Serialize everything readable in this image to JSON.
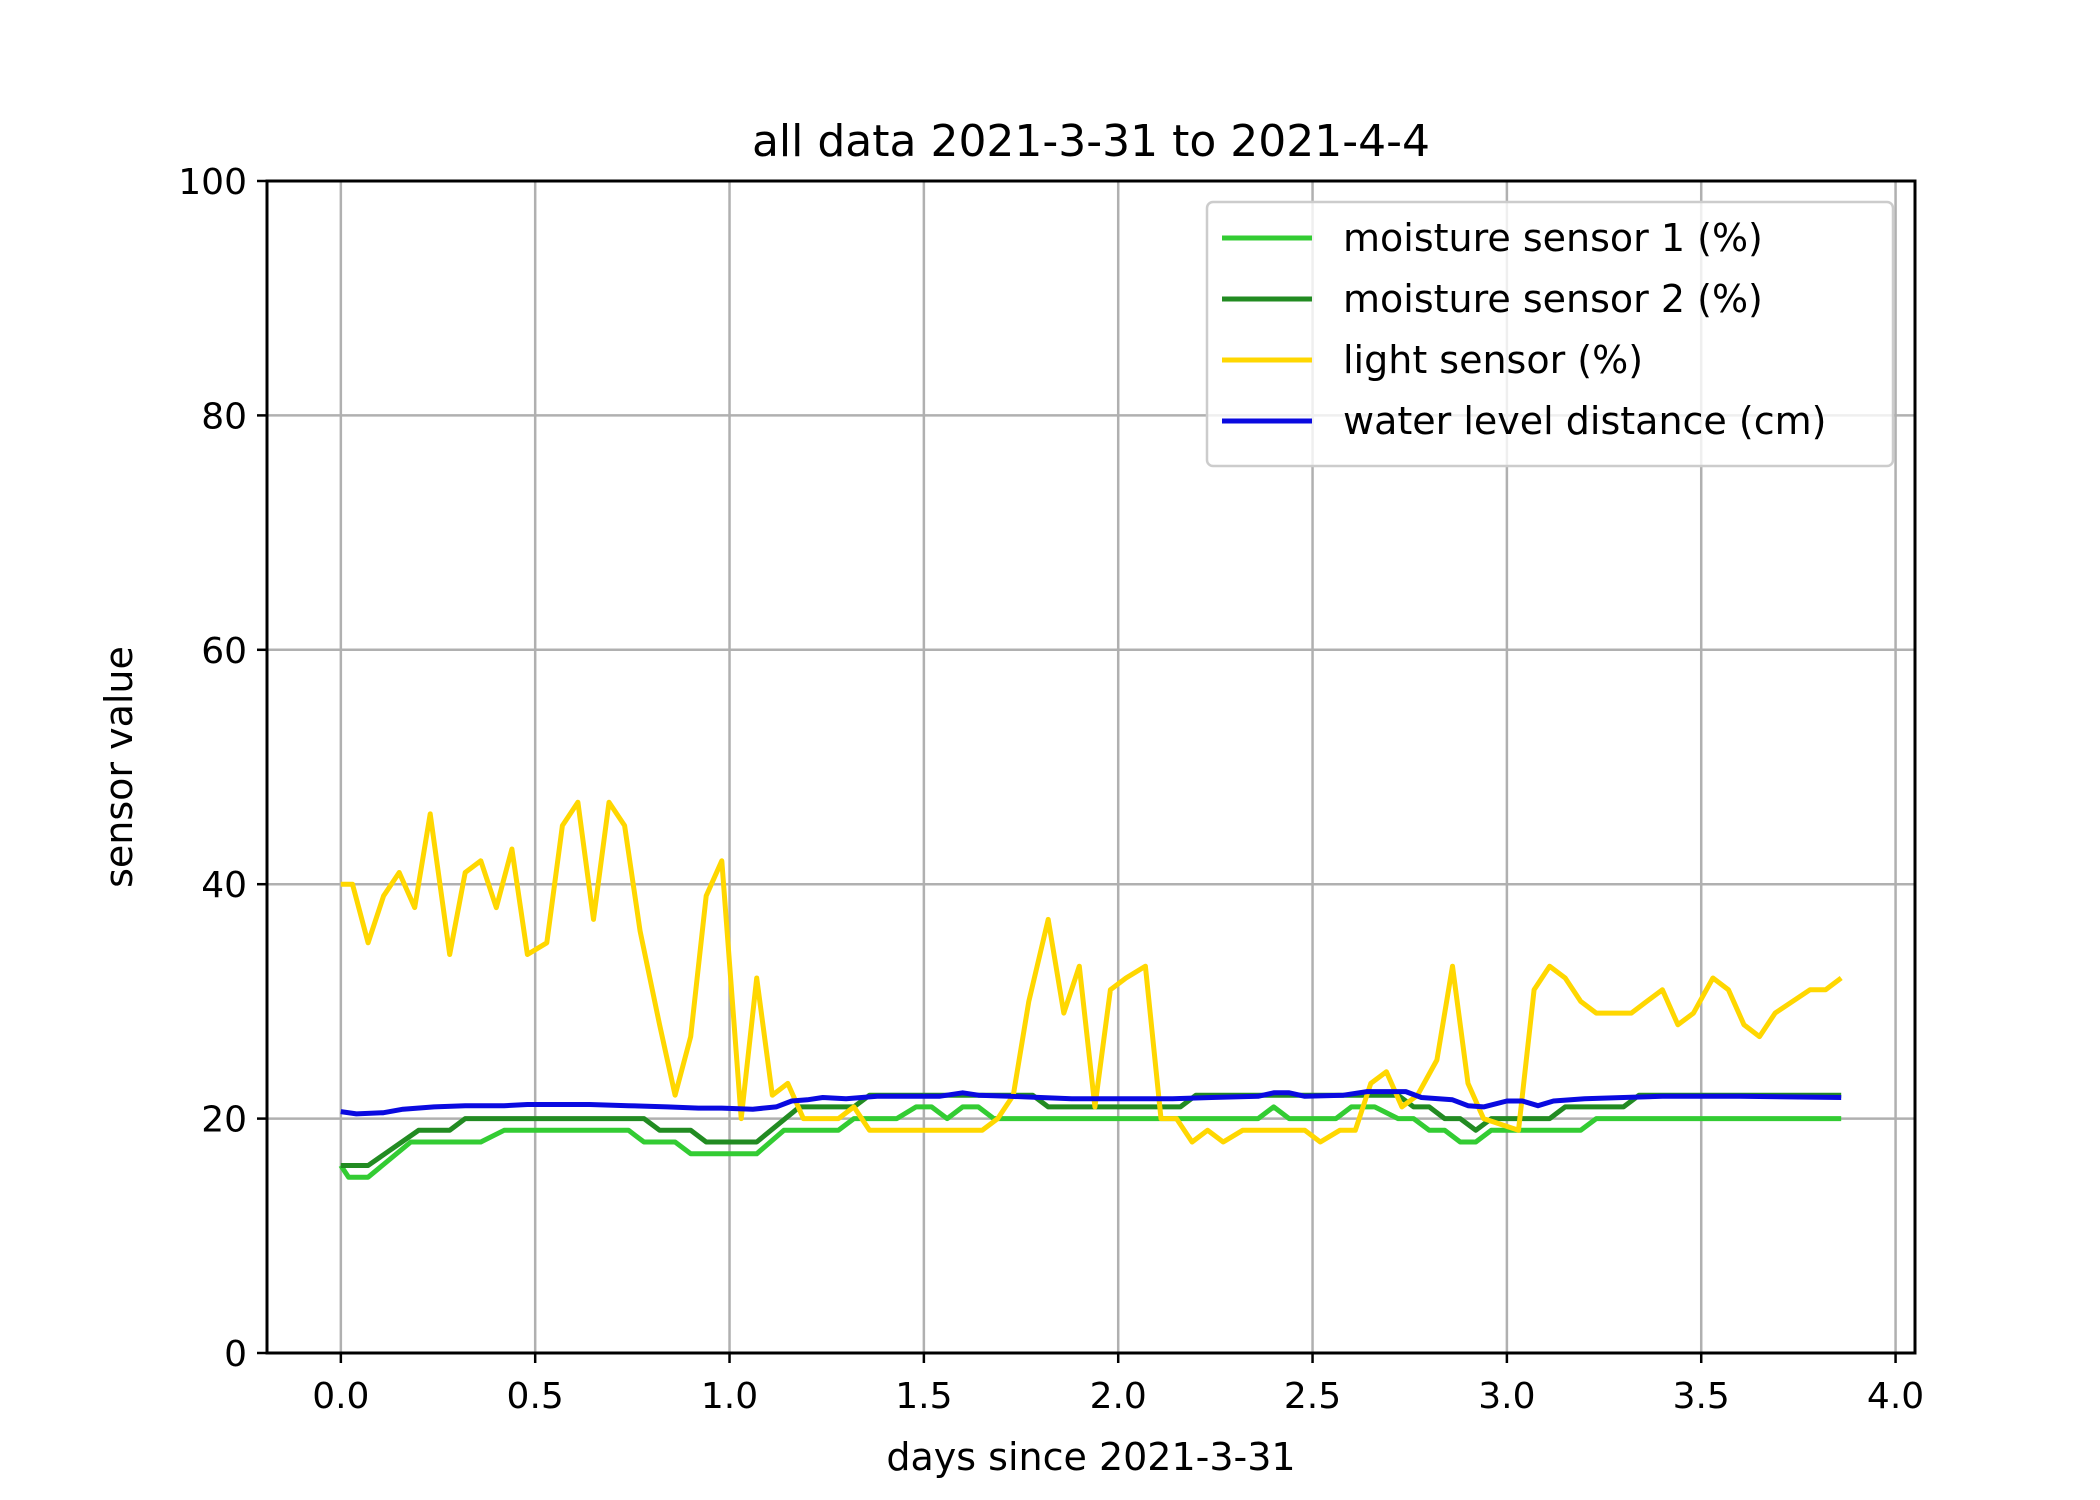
{
  "chart_data": {
    "type": "line",
    "title": "all data 2021-3-31 to 2021-4-4",
    "xlabel": "days since 2021-3-31",
    "ylabel": "sensor value",
    "xlim": [
      -0.19,
      4.05
    ],
    "ylim": [
      0,
      100
    ],
    "xticks": [
      0.0,
      0.5,
      1.0,
      1.5,
      2.0,
      2.5,
      3.0,
      3.5,
      4.0
    ],
    "xtick_labels": [
      "0.0",
      "0.5",
      "1.0",
      "1.5",
      "2.0",
      "2.5",
      "3.0",
      "3.5",
      "4.0"
    ],
    "yticks": [
      0,
      20,
      40,
      60,
      80,
      100
    ],
    "ytick_labels": [
      "0",
      "20",
      "40",
      "60",
      "80",
      "100"
    ],
    "grid": true,
    "legend_position": "top-right",
    "series": [
      {
        "name": "moisture sensor 1 (%)",
        "color": "#33cc33",
        "points": [
          [
            0.0,
            16
          ],
          [
            0.02,
            15
          ],
          [
            0.07,
            15
          ],
          [
            0.18,
            18
          ],
          [
            0.36,
            18
          ],
          [
            0.42,
            19
          ],
          [
            0.74,
            19
          ],
          [
            0.78,
            18
          ],
          [
            0.86,
            18
          ],
          [
            0.9,
            17
          ],
          [
            1.07,
            17
          ],
          [
            1.14,
            19
          ],
          [
            1.28,
            19
          ],
          [
            1.32,
            20
          ],
          [
            1.43,
            20
          ],
          [
            1.48,
            21
          ],
          [
            1.52,
            21
          ],
          [
            1.56,
            20
          ],
          [
            1.6,
            21
          ],
          [
            1.64,
            21
          ],
          [
            1.68,
            20
          ],
          [
            2.18,
            20
          ],
          [
            2.36,
            20
          ],
          [
            2.4,
            21
          ],
          [
            2.44,
            20
          ],
          [
            2.56,
            20
          ],
          [
            2.6,
            21
          ],
          [
            2.66,
            21
          ],
          [
            2.72,
            20
          ],
          [
            2.76,
            20
          ],
          [
            2.8,
            19
          ],
          [
            2.84,
            19
          ],
          [
            2.88,
            18
          ],
          [
            2.92,
            18
          ],
          [
            2.96,
            19
          ],
          [
            3.19,
            19
          ],
          [
            3.23,
            20
          ],
          [
            3.86,
            20
          ]
        ]
      },
      {
        "name": "moisture sensor 2 (%)",
        "color": "#228b22",
        "points": [
          [
            0.0,
            16
          ],
          [
            0.07,
            16
          ],
          [
            0.2,
            19
          ],
          [
            0.28,
            19
          ],
          [
            0.32,
            20
          ],
          [
            0.78,
            20
          ],
          [
            0.82,
            19
          ],
          [
            0.9,
            19
          ],
          [
            0.94,
            18
          ],
          [
            1.07,
            18
          ],
          [
            1.18,
            21
          ],
          [
            1.32,
            21
          ],
          [
            1.36,
            22
          ],
          [
            1.72,
            22
          ],
          [
            1.78,
            22
          ],
          [
            1.82,
            21
          ],
          [
            2.16,
            21
          ],
          [
            2.2,
            22
          ],
          [
            2.68,
            22
          ],
          [
            2.72,
            22
          ],
          [
            2.76,
            21
          ],
          [
            2.8,
            21
          ],
          [
            2.84,
            20
          ],
          [
            2.88,
            20
          ],
          [
            2.92,
            19
          ],
          [
            2.96,
            20
          ],
          [
            3.11,
            20
          ],
          [
            3.15,
            21
          ],
          [
            3.3,
            21
          ],
          [
            3.34,
            22
          ],
          [
            3.86,
            22
          ]
        ]
      },
      {
        "name": "light sensor (%)",
        "color": "#ffd700",
        "points": [
          [
            0.0,
            40
          ],
          [
            0.03,
            40
          ],
          [
            0.07,
            35
          ],
          [
            0.11,
            39
          ],
          [
            0.15,
            41
          ],
          [
            0.19,
            38
          ],
          [
            0.23,
            46
          ],
          [
            0.28,
            34
          ],
          [
            0.32,
            41
          ],
          [
            0.36,
            42
          ],
          [
            0.4,
            38
          ],
          [
            0.44,
            43
          ],
          [
            0.48,
            34
          ],
          [
            0.53,
            35
          ],
          [
            0.57,
            45
          ],
          [
            0.61,
            47
          ],
          [
            0.65,
            37
          ],
          [
            0.69,
            47
          ],
          [
            0.73,
            45
          ],
          [
            0.77,
            36
          ],
          [
            0.82,
            28
          ],
          [
            0.86,
            22
          ],
          [
            0.9,
            27
          ],
          [
            0.94,
            39
          ],
          [
            0.98,
            42
          ],
          [
            1.03,
            20
          ],
          [
            1.07,
            32
          ],
          [
            1.11,
            22
          ],
          [
            1.15,
            23
          ],
          [
            1.19,
            20
          ],
          [
            1.28,
            20
          ],
          [
            1.32,
            21
          ],
          [
            1.36,
            19
          ],
          [
            1.65,
            19
          ],
          [
            1.69,
            20
          ],
          [
            1.73,
            22
          ],
          [
            1.77,
            30
          ],
          [
            1.82,
            37
          ],
          [
            1.86,
            29
          ],
          [
            1.9,
            33
          ],
          [
            1.94,
            21
          ],
          [
            1.98,
            31
          ],
          [
            2.02,
            32
          ],
          [
            2.07,
            33
          ],
          [
            2.11,
            20
          ],
          [
            2.15,
            20
          ],
          [
            2.19,
            18
          ],
          [
            2.23,
            19
          ],
          [
            2.27,
            18
          ],
          [
            2.32,
            19
          ],
          [
            2.48,
            19
          ],
          [
            2.52,
            18
          ],
          [
            2.57,
            19
          ],
          [
            2.61,
            19
          ],
          [
            2.65,
            23
          ],
          [
            2.69,
            24
          ],
          [
            2.73,
            21
          ],
          [
            2.77,
            22
          ],
          [
            2.82,
            25
          ],
          [
            2.86,
            33
          ],
          [
            2.9,
            23
          ],
          [
            2.94,
            20
          ],
          [
            3.03,
            19
          ],
          [
            3.07,
            31
          ],
          [
            3.11,
            33
          ],
          [
            3.15,
            32
          ],
          [
            3.19,
            30
          ],
          [
            3.23,
            29
          ],
          [
            3.32,
            29
          ],
          [
            3.36,
            30
          ],
          [
            3.4,
            31
          ],
          [
            3.44,
            28
          ],
          [
            3.48,
            29
          ],
          [
            3.53,
            32
          ],
          [
            3.57,
            31
          ],
          [
            3.61,
            28
          ],
          [
            3.65,
            27
          ],
          [
            3.69,
            29
          ],
          [
            3.78,
            31
          ],
          [
            3.82,
            31
          ],
          [
            3.86,
            32
          ]
        ]
      },
      {
        "name": "water level distance (cm)",
        "color": "#0a0ae0",
        "points": [
          [
            0.0,
            20.6
          ],
          [
            0.04,
            20.4
          ],
          [
            0.11,
            20.5
          ],
          [
            0.16,
            20.8
          ],
          [
            0.24,
            21.0
          ],
          [
            0.32,
            21.1
          ],
          [
            0.42,
            21.1
          ],
          [
            0.48,
            21.2
          ],
          [
            0.56,
            21.2
          ],
          [
            0.64,
            21.2
          ],
          [
            0.74,
            21.1
          ],
          [
            0.84,
            21.0
          ],
          [
            0.92,
            20.9
          ],
          [
            0.98,
            20.9
          ],
          [
            1.06,
            20.8
          ],
          [
            1.12,
            21.0
          ],
          [
            1.16,
            21.5
          ],
          [
            1.2,
            21.6
          ],
          [
            1.24,
            21.8
          ],
          [
            1.3,
            21.7
          ],
          [
            1.38,
            21.9
          ],
          [
            1.46,
            21.9
          ],
          [
            1.54,
            21.9
          ],
          [
            1.6,
            22.2
          ],
          [
            1.64,
            22.0
          ],
          [
            1.72,
            21.9
          ],
          [
            1.8,
            21.8
          ],
          [
            1.88,
            21.7
          ],
          [
            2.0,
            21.7
          ],
          [
            2.14,
            21.7
          ],
          [
            2.24,
            21.8
          ],
          [
            2.36,
            21.9
          ],
          [
            2.4,
            22.2
          ],
          [
            2.44,
            22.2
          ],
          [
            2.48,
            21.9
          ],
          [
            2.58,
            22.0
          ],
          [
            2.64,
            22.3
          ],
          [
            2.74,
            22.3
          ],
          [
            2.78,
            21.8
          ],
          [
            2.86,
            21.6
          ],
          [
            2.9,
            21.1
          ],
          [
            2.94,
            21.0
          ],
          [
            3.0,
            21.5
          ],
          [
            3.04,
            21.5
          ],
          [
            3.08,
            21.1
          ],
          [
            3.12,
            21.5
          ],
          [
            3.2,
            21.7
          ],
          [
            3.3,
            21.8
          ],
          [
            3.4,
            21.9
          ],
          [
            3.6,
            21.9
          ],
          [
            3.86,
            21.8
          ]
        ]
      }
    ]
  }
}
